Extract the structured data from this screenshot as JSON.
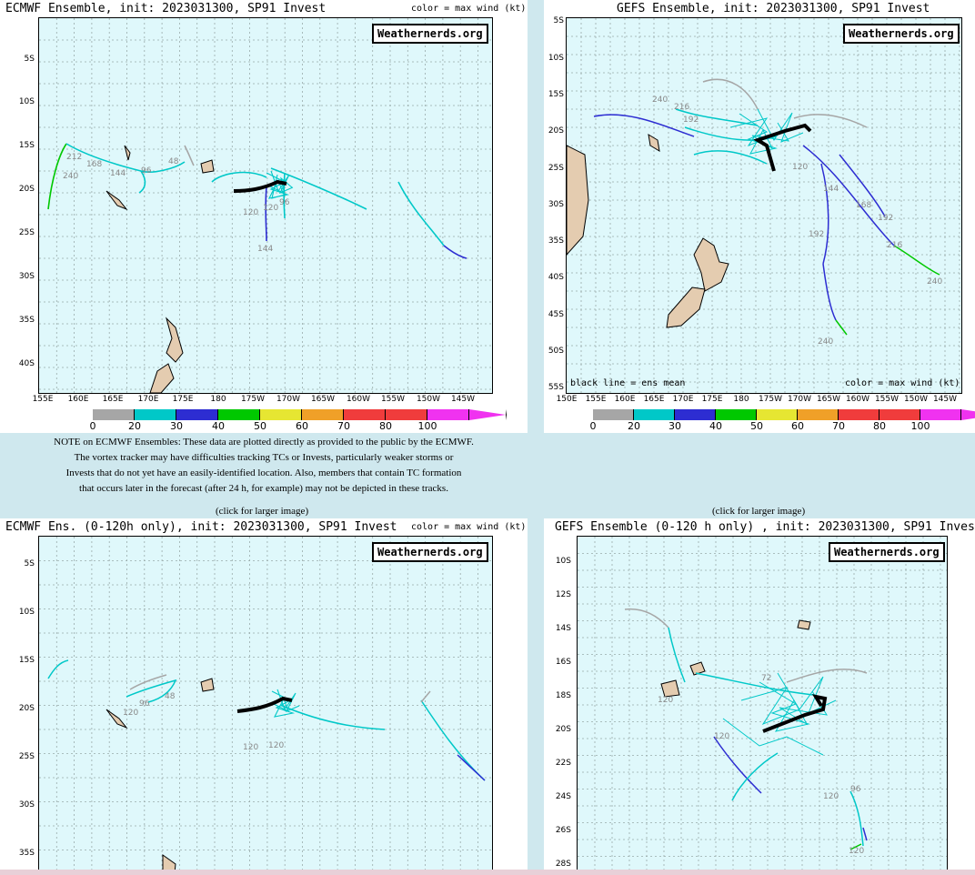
{
  "colorbar_values": [
    "0",
    "20",
    "30",
    "40",
    "50",
    "60",
    "70",
    "80",
    "100"
  ],
  "colorbar_colors": [
    "#a6a6a6",
    "#00c8c8",
    "#2d2dd2",
    "#00c800",
    "#e6e632",
    "#f0a028",
    "#f03c3c",
    "#f03c3c",
    "#f032f0"
  ],
  "panels": {
    "tl": {
      "title": "ECMWF Ensemble, init: 2023031300, SP91 Invest",
      "right": "color = max wind (kt)",
      "brand": "Weathernerds.org",
      "ylabels": [
        "5S",
        "10S",
        "15S",
        "20S",
        "25S",
        "30S",
        "35S",
        "40S"
      ],
      "xlabels": [
        "155E",
        "160E",
        "165E",
        "170E",
        "175E",
        "180",
        "175W",
        "170W",
        "165W",
        "160W",
        "155W",
        "150W",
        "145W"
      ],
      "hour_labels": [
        "212",
        "168",
        "144",
        "96",
        "48",
        "120",
        "96",
        "144",
        "240",
        "120"
      ]
    },
    "tr": {
      "title": "GEFS Ensemble, init: 2023031300, SP91 Invest",
      "brand": "Weathernerds.org",
      "ylabels": [
        "5S",
        "10S",
        "15S",
        "20S",
        "25S",
        "30S",
        "35S",
        "40S",
        "45S",
        "50S",
        "55S"
      ],
      "xlabels": [
        "150E",
        "155E",
        "160E",
        "165E",
        "170E",
        "175E",
        "180",
        "175W",
        "170W",
        "165W",
        "160W",
        "155W",
        "150W",
        "145W"
      ],
      "bottom_left": "black line = ens mean",
      "bottom_right": "color = max wind (kt)",
      "hour_labels": [
        "240",
        "216",
        "192",
        "168",
        "144",
        "120",
        "192",
        "216",
        "240",
        "240",
        "192"
      ]
    },
    "bl": {
      "title": "ECMWF Ens. (0-120h only), init: 2023031300, SP91 Invest",
      "right": "color = max wind (kt)",
      "brand": "Weathernerds.org",
      "ylabels": [
        "5S",
        "10S",
        "15S",
        "20S",
        "25S",
        "30S",
        "35S"
      ],
      "hour_labels": [
        "120",
        "96",
        "48",
        "120",
        "120"
      ]
    },
    "br": {
      "title": "GEFS Ensemble (0-120 h only) , init: 2023031300, SP91 Invest",
      "brand": "Weathernerds.org",
      "ylabels": [
        "10S",
        "12S",
        "14S",
        "16S",
        "18S",
        "20S",
        "22S",
        "24S",
        "26S",
        "28S"
      ],
      "hour_labels": [
        "72",
        "120",
        "120",
        "120",
        "96",
        "120"
      ]
    }
  },
  "note": {
    "lines": [
      "NOTE on ECMWF Ensembles: These data are plotted directly as provided to the public by the ECMWF.",
      "The vortex tracker may have difficulties tracking TCs or Invests, particularly weaker storms or",
      "Invests that do not yet have an easily-identified location. Also, members that contain TC formation",
      "that occurs later in the forecast (after 24 h, for example) may not be depicted in these tracks."
    ]
  },
  "click_left": "(click for larger image)",
  "click_right": "(click for larger image)"
}
